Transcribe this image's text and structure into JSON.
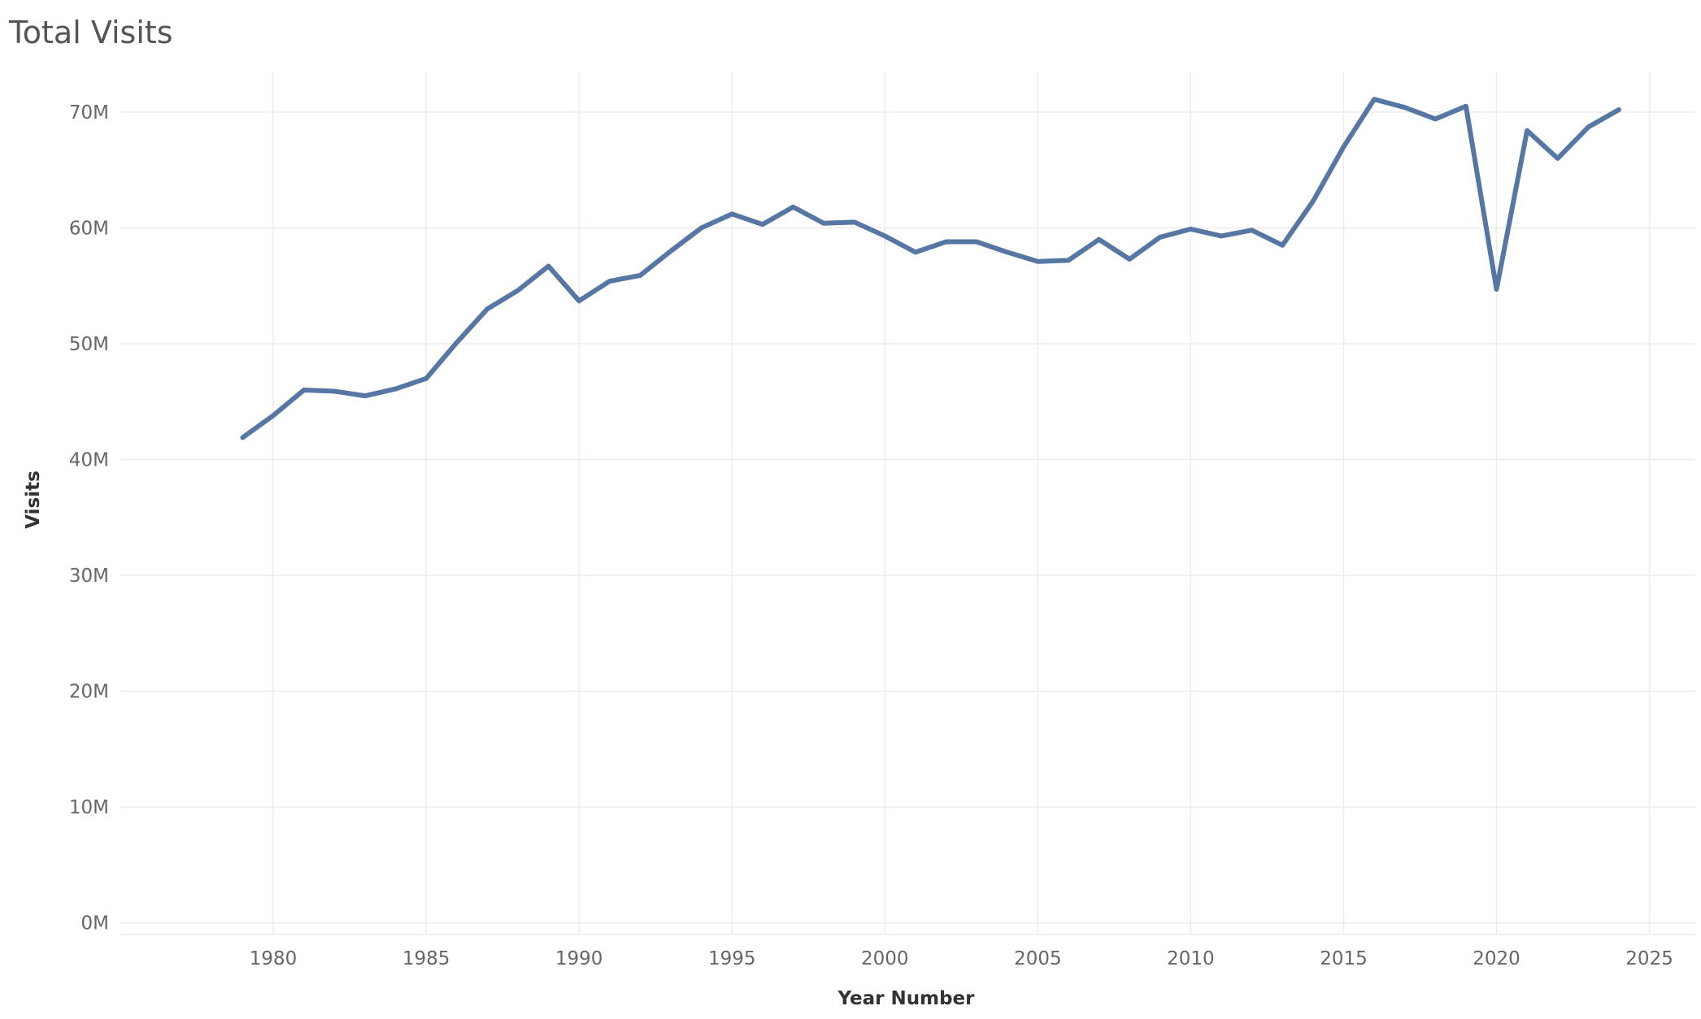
{
  "colors": {
    "series": "#5676a4",
    "gridline": "#ececec",
    "tick_text": "#666666",
    "axis_title_text": "#333333",
    "title_text": "#555555"
  },
  "chart_data": {
    "type": "line",
    "title": "Total Visits",
    "xlabel": "Year Number",
    "ylabel": "Visits",
    "xlim": [
      1975,
      2026.5
    ],
    "ylim": [
      -1000000,
      73500000
    ],
    "x_ticks": [
      1980,
      1985,
      1990,
      1995,
      2000,
      2005,
      2010,
      2015,
      2020,
      2025
    ],
    "x_tick_labels": [
      "1980",
      "1985",
      "1990",
      "1995",
      "2000",
      "2005",
      "2010",
      "2015",
      "2020",
      "2025"
    ],
    "y_ticks": [
      0,
      10000000,
      20000000,
      30000000,
      40000000,
      50000000,
      60000000,
      70000000
    ],
    "y_tick_labels": [
      "0M",
      "10M",
      "20M",
      "30M",
      "40M",
      "50M",
      "60M",
      "70M"
    ],
    "grid": true,
    "legend": "none",
    "series": [
      {
        "x": [
          1979,
          1980,
          1981,
          1982,
          1983,
          1984,
          1985,
          1986,
          1987,
          1988,
          1989,
          1990,
          1991,
          1992,
          1993,
          1994,
          1995,
          1996,
          1997,
          1998,
          1999,
          2000,
          2001,
          2002,
          2003,
          2004,
          2005,
          2006,
          2007,
          2008,
          2009,
          2010,
          2011,
          2012,
          2013,
          2014,
          2015,
          2016,
          2017,
          2018,
          2019,
          2020,
          2021,
          2022,
          2023,
          2024
        ],
        "values": [
          41900000,
          43800000,
          46000000,
          45900000,
          45500000,
          46100000,
          47000000,
          50100000,
          53000000,
          54600000,
          56700000,
          53700000,
          55400000,
          55900000,
          58000000,
          60000000,
          61200000,
          60300000,
          61800000,
          60400000,
          60500000,
          59300000,
          57900000,
          58800000,
          58800000,
          57900000,
          57100000,
          57200000,
          59000000,
          57300000,
          59200000,
          59900000,
          59300000,
          59800000,
          58500000,
          62300000,
          67000000,
          71100000,
          70400000,
          69400000,
          70500000,
          54700000,
          68400000,
          66000000,
          68700000,
          70200000
        ]
      }
    ]
  }
}
